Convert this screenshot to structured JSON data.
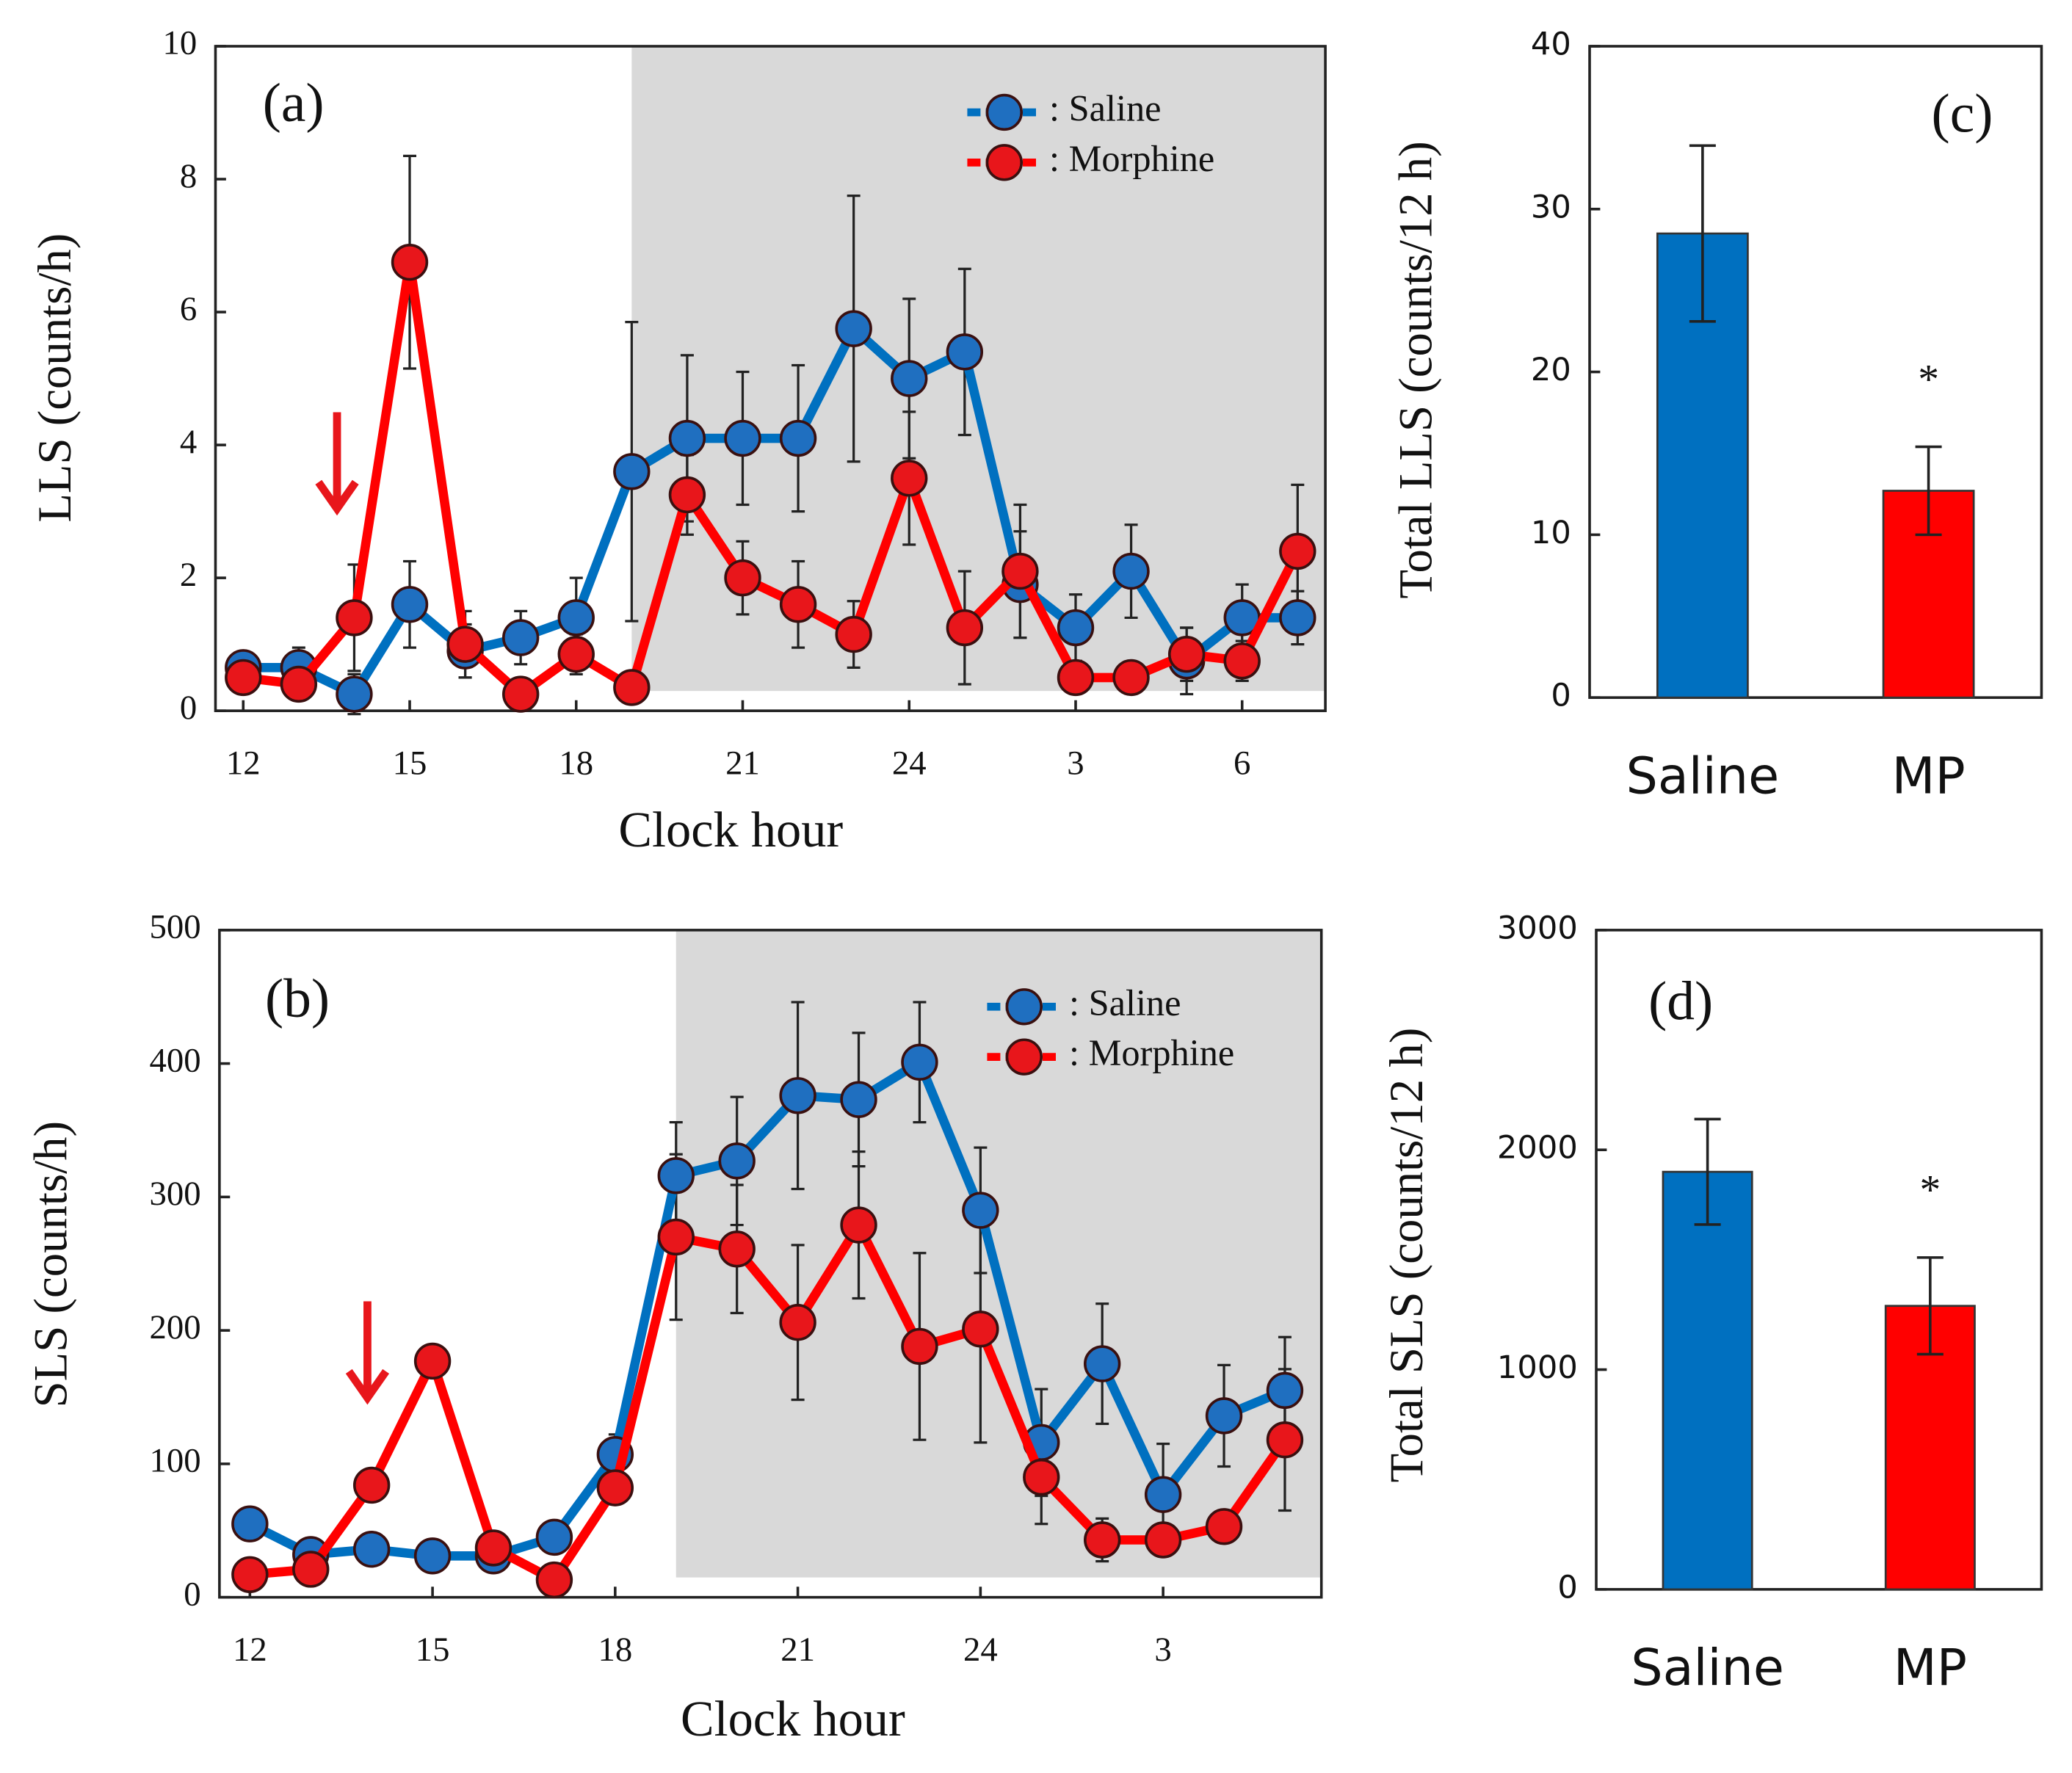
{
  "chart_data": [
    {
      "type": "line",
      "label": "(a)",
      "x_label": "Clock hour",
      "y_label": "LLS (counts/h)",
      "x": [
        12,
        13,
        14,
        15,
        16,
        17,
        18,
        19,
        20,
        21,
        22,
        23,
        24,
        25,
        26,
        27,
        28,
        29,
        30,
        31
      ],
      "xlim": [
        11.5,
        31.5
      ],
      "xticks": [
        12,
        15,
        18,
        21,
        24,
        {
          "value": 27,
          "label": "3"
        },
        {
          "value": 30,
          "label": "6"
        }
      ],
      "ylim": [
        0,
        10
      ],
      "yticks": [
        0,
        2,
        4,
        6,
        8,
        10
      ],
      "shade_from": 19,
      "series": [
        {
          "name": ": Saline",
          "color": "#0070c0",
          "marker_color": "#1f6fc0",
          "values": [
            0.65,
            0.65,
            0.25,
            1.6,
            0.9,
            1.1,
            1.4,
            3.6,
            4.1,
            4.1,
            4.1,
            5.75,
            5.0,
            5.4,
            1.9,
            1.25,
            2.1,
            0.75,
            1.4,
            1.4
          ],
          "errors": [
            0.15,
            0.3,
            0.3,
            0.65,
            0.4,
            0.4,
            0.6,
            2.25,
            1.25,
            1.0,
            1.1,
            2.0,
            1.2,
            1.25,
            0.8,
            0.5,
            0.7,
            0.5,
            0.5,
            0.4
          ]
        },
        {
          "name": ": Morphine",
          "color": "#ff0000",
          "marker_color": "#e8161b",
          "values": [
            0.5,
            0.4,
            1.4,
            6.75,
            1.0,
            0.25,
            0.85,
            0.35,
            3.25,
            2.0,
            1.6,
            1.15,
            3.5,
            1.25,
            2.1,
            0.5,
            0.5,
            0.85,
            0.75,
            2.4
          ],
          "errors": [
            0.1,
            0.2,
            0.8,
            1.6,
            0.5,
            0.1,
            0.3,
            0.1,
            0.6,
            0.55,
            0.65,
            0.5,
            1.0,
            0.85,
            1.0,
            0.2,
            0.1,
            0.4,
            0.3,
            1.0
          ]
        }
      ]
    },
    {
      "type": "line",
      "label": "(b)",
      "x_label": "Clock hour",
      "y_label": "SLS (counts/h)",
      "x": [
        12,
        13,
        14,
        15,
        16,
        17,
        18,
        19,
        20,
        21,
        22,
        23,
        24,
        25,
        26,
        27,
        28,
        29
      ],
      "xlim": [
        11.5,
        29.6
      ],
      "xticks": [
        12,
        15,
        18,
        21,
        24,
        {
          "value": 27,
          "label": "3"
        }
      ],
      "ylim": [
        0,
        500
      ],
      "yticks": [
        0,
        100,
        200,
        300,
        400,
        500
      ],
      "shade_from": 19,
      "series": [
        {
          "name": ": Saline",
          "color": "#0070c0",
          "marker_color": "#1f6fc0",
          "values": [
            55,
            32,
            36,
            31,
            31,
            45,
            107,
            316,
            327,
            376,
            373,
            401,
            290,
            116,
            175,
            77,
            136,
            155
          ],
          "errors": [
            10,
            10,
            8,
            5,
            8,
            10,
            15,
            40,
            48,
            70,
            50,
            45,
            47,
            40,
            45,
            38,
            38,
            40
          ]
        },
        {
          "name": ": Morphine",
          "color": "#ff0000",
          "marker_color": "#e8161b",
          "values": [
            17,
            21,
            84,
            177,
            37,
            13,
            82,
            270,
            261,
            206,
            279,
            188,
            201,
            90,
            43,
            43,
            53,
            118
          ],
          "errors": [
            5,
            5,
            10,
            8,
            8,
            5,
            10,
            62,
            48,
            58,
            55,
            70,
            85,
            35,
            16,
            8,
            8,
            53
          ]
        }
      ]
    },
    {
      "type": "bar",
      "label": "(c)",
      "y_label": "Total LLS (counts/12 h)",
      "categories": [
        "Saline",
        "MP"
      ],
      "values": [
        28.5,
        12.7
      ],
      "errors": [
        5.4,
        2.7
      ],
      "colors": [
        "#0070c0",
        "#ff0000"
      ],
      "ylim": [
        0,
        40
      ],
      "yticks": [
        0,
        10,
        20,
        30,
        40
      ],
      "annotations": [
        {
          "text": "*",
          "x": "MP"
        }
      ]
    },
    {
      "type": "bar",
      "label": "(d)",
      "y_label": "Total SLS (counts/12 h)",
      "categories": [
        "Saline",
        "MP"
      ],
      "values": [
        1900,
        1290
      ],
      "errors": [
        240,
        220
      ],
      "colors": [
        "#0070c0",
        "#ff0000"
      ],
      "ylim": [
        0,
        3000
      ],
      "yticks": [
        0,
        1000,
        2000,
        3000
      ],
      "annotations": [
        {
          "text": "*",
          "x": "MP"
        }
      ]
    }
  ]
}
